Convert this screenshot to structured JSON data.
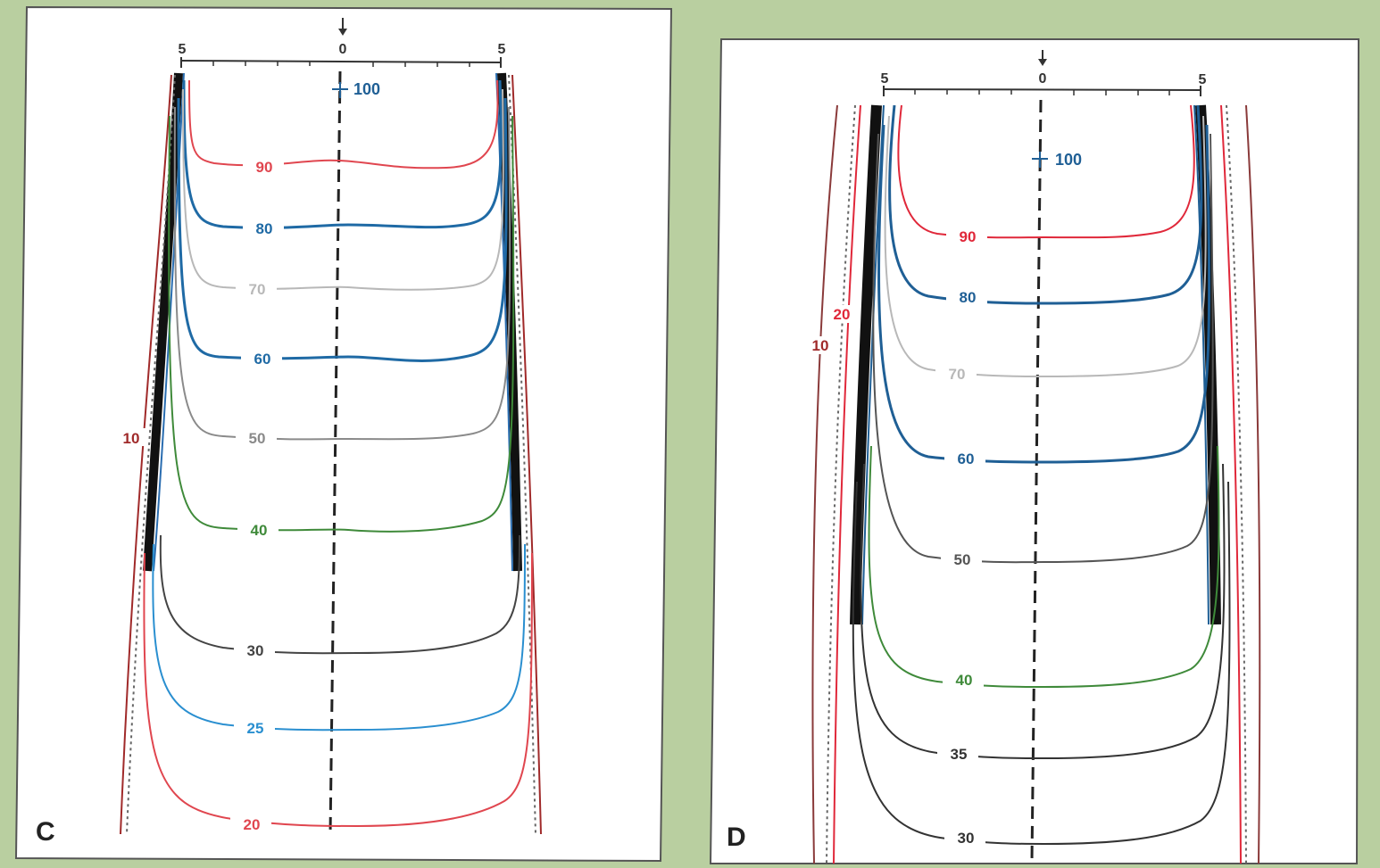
{
  "panels": [
    {
      "id": "C",
      "letter": "C",
      "scale": {
        "left_tick": "5",
        "center_tick": "0",
        "right_tick": "5"
      },
      "max_marker": "100",
      "isodose_lines": [
        {
          "label": "90",
          "color": "#e0464f"
        },
        {
          "label": "80",
          "color": "#1f6aa5"
        },
        {
          "label": "70",
          "color": "#b8b8b8"
        },
        {
          "label": "60",
          "color": "#1f6aa5"
        },
        {
          "label": "50",
          "color": "#8a8a8a"
        },
        {
          "label": "40",
          "color": "#3f8a3a"
        },
        {
          "label": "30",
          "color": "#444444"
        },
        {
          "label": "25",
          "color": "#2a8fd0"
        },
        {
          "label": "20",
          "color": "#e0464f"
        }
      ],
      "side_labels": [
        {
          "label": "10",
          "color": "#a02a2a"
        }
      ]
    },
    {
      "id": "D",
      "letter": "D",
      "scale": {
        "left_tick": "5",
        "center_tick": "0",
        "right_tick": "5"
      },
      "max_marker": "100",
      "isodose_lines": [
        {
          "label": "90",
          "color": "#e0283a"
        },
        {
          "label": "80",
          "color": "#1f5f95"
        },
        {
          "label": "70",
          "color": "#b8b8b8"
        },
        {
          "label": "60",
          "color": "#1f5f95"
        },
        {
          "label": "50",
          "color": "#555555"
        },
        {
          "label": "40",
          "color": "#3f8a3a"
        },
        {
          "label": "35",
          "color": "#333333"
        },
        {
          "label": "30",
          "color": "#333333"
        }
      ],
      "side_labels": [
        {
          "label": "20",
          "color": "#e0283a"
        },
        {
          "label": "10",
          "color": "#a02a2a"
        }
      ]
    }
  ]
}
